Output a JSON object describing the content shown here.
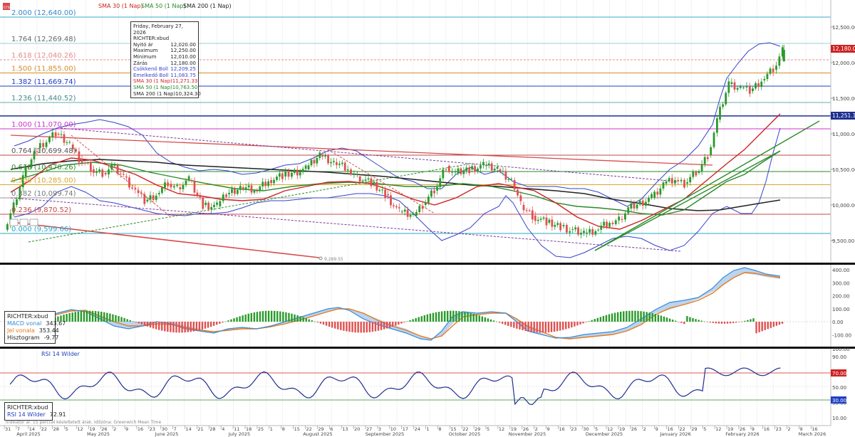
{
  "top_legend": {
    "symbol_badge": "crs",
    "sma30": "SMA 30 (1 Nap)",
    "sma50": "SMA 50 (1 Nap)",
    "sma200": "SMA 200 (1 Nap)"
  },
  "fib_labels": [
    {
      "text": "2.000 (12,640.00)",
      "color": "#3a86c8"
    },
    {
      "text": "1.764 (12,269.48)",
      "color": "#666666"
    },
    {
      "text": "1.618 (12,040.26)",
      "color": "#e88a8a"
    },
    {
      "text": "1.500 (11,855.00)",
      "color": "#d88a2a"
    },
    {
      "text": "1.382 (11,669.74)",
      "color": "#1f3fc0"
    },
    {
      "text": "1.236 (11,440.52)",
      "color": "#4a8a8a"
    },
    {
      "text": "1.000 (11,070.00)",
      "color": "#cc33cc"
    },
    {
      "text": "0.764 (10,699.48)",
      "color": "#555555"
    },
    {
      "text": "0.618 (10,470.26)",
      "color": "#2a8a2a"
    },
    {
      "text": "0.500 (10,285.00)",
      "color": "#d8a82a"
    },
    {
      "text": "0.382 (10,099.74)",
      "color": "#777777"
    },
    {
      "text": "0.236 (9,870.52)",
      "color": "#c84a4a"
    },
    {
      "text": "0.000 (9,599.66)",
      "color": "#2aa8c8"
    }
  ],
  "tooltip": {
    "date": "Friday, February 27, 2026",
    "ticker": "RICHTER:xbud",
    "rows": [
      {
        "label": "Nyitó ár",
        "value": "12,020.00",
        "color": "#222222"
      },
      {
        "label": "Maximum",
        "value": "12,250.00",
        "color": "#222222"
      },
      {
        "label": "Minimum",
        "value": "12,010.00",
        "color": "#222222"
      },
      {
        "label": "Zárás",
        "value": "12,180.00",
        "color": "#222222"
      },
      {
        "label": "Csökkenő Boll",
        "value": "12,209.25",
        "color": "#3344cc"
      },
      {
        "label": "Emelkedő Boll",
        "value": "11,083.75",
        "color": "#3344cc"
      },
      {
        "label": "SMA 30 (1 Nap)",
        "value": "11,271.33",
        "color": "#cc2222"
      },
      {
        "label": "SMA 50 (1 Nap)",
        "value": "10,763.50",
        "color": "#228822"
      },
      {
        "label": "SMA 200 (1 Nap)",
        "value": "10,324.30",
        "color": "#222222"
      }
    ]
  },
  "price_axis": {
    "ticks": [
      "12,500.00",
      "12,000.00",
      "11,500.00",
      "11,000.00",
      "10,500.00",
      "10,000.00",
      "9,500.00"
    ],
    "last_price_tag": "12,180.00",
    "hline_tag": "11,251.13",
    "low_marker": "9,289.55"
  },
  "macd_panel": {
    "ticker": "RICHTER:xbud",
    "macd_label": "MACD vonal",
    "macd_value": "343.67",
    "signal_label": "Jel vonala",
    "signal_value": "353.44",
    "hist_label": "Hisztogram",
    "hist_value": "-9.77",
    "ticks": [
      "400.00",
      "300.00",
      "200.00",
      "100.00",
      "0.00",
      "-100.00"
    ]
  },
  "rsi_panel": {
    "title": "RSI 14 Wilder",
    "ticker": "RICHTER:xbud",
    "rsi_label": "RSI 14 Wilder",
    "rsi_value": "72.91",
    "ticks": [
      "100.00",
      "90.00",
      "70.00",
      "50.00",
      "30.00",
      "10.00"
    ],
    "tag70": "70.00",
    "tag30": "30.00",
    "footer": "Indikátor ár. 15 perccel késleltetett árak. Időzóna: Greenwich Mean Time"
  },
  "time_axis": {
    "days": [
      "31",
      "7",
      "14",
      "22",
      "28",
      "5",
      "12",
      "19",
      "26",
      "2",
      "9",
      "16",
      "23",
      "30",
      "7",
      "14",
      "21",
      "28",
      "4",
      "11",
      "18",
      "25",
      "1",
      "8",
      "15",
      "22",
      "29",
      "6",
      "13",
      "20",
      "27",
      "3",
      "10",
      "17",
      "24",
      "1",
      "8",
      "15",
      "22",
      "29",
      "5",
      "12",
      "19",
      "26",
      "2",
      "9",
      "16",
      "23",
      "30",
      "5",
      "12",
      "19",
      "26",
      "2",
      "9",
      "16",
      "22",
      "29",
      "5",
      "12",
      "19",
      "26",
      "9",
      "16",
      "23",
      "2",
      "9",
      "16"
    ],
    "months": [
      "April 2025",
      "May 2025",
      "June 2025",
      "July 2025",
      "August 2025",
      "September 2025",
      "October 2025",
      "November 2025",
      "December 2025",
      "January 2026",
      "February 2026",
      "March 2026"
    ]
  },
  "chart_data": {
    "type": "candlestick",
    "ticker": "RICHTER:xbud",
    "timeframe": "1 Nap",
    "x_range": [
      "2025-03-31",
      "2026-03-16"
    ],
    "price_range": [
      9289.55,
      12640.0
    ],
    "last_bar": {
      "date": "2026-02-27",
      "open": 12020,
      "high": 12250,
      "low": 12010,
      "close": 12180
    },
    "fibonacci": [
      {
        "level": 2.0,
        "price": 12640.0
      },
      {
        "level": 1.764,
        "price": 12269.48
      },
      {
        "level": 1.618,
        "price": 12040.26
      },
      {
        "level": 1.5,
        "price": 11855.0
      },
      {
        "level": 1.382,
        "price": 11669.74
      },
      {
        "level": 1.236,
        "price": 11440.52
      },
      {
        "level": 1.0,
        "price": 11070.0
      },
      {
        "level": 0.764,
        "price": 10699.48
      },
      {
        "level": 0.618,
        "price": 10470.26
      },
      {
        "level": 0.5,
        "price": 10285.0
      },
      {
        "level": 0.382,
        "price": 10099.74
      },
      {
        "level": 0.236,
        "price": 9870.52
      },
      {
        "level": 0.0,
        "price": 9599.66
      }
    ],
    "horizontal_line": 11251.13,
    "series_close": [
      {
        "date": "2025-03-31",
        "close": 9650
      },
      {
        "date": "2025-04-04",
        "close": 10000
      },
      {
        "date": "2025-04-08",
        "close": 10400
      },
      {
        "date": "2025-04-14",
        "close": 10800
      },
      {
        "date": "2025-04-22",
        "close": 11000
      },
      {
        "date": "2025-04-28",
        "close": 10850
      },
      {
        "date": "2025-05-02",
        "close": 10650
      },
      {
        "date": "2025-05-07",
        "close": 10500
      },
      {
        "date": "2025-05-12",
        "close": 10450
      },
      {
        "date": "2025-05-16",
        "close": 10550
      },
      {
        "date": "2025-05-21",
        "close": 10400
      },
      {
        "date": "2025-05-26",
        "close": 10200
      },
      {
        "date": "2025-05-30",
        "close": 10050
      },
      {
        "date": "2025-06-04",
        "close": 10150
      },
      {
        "date": "2025-06-09",
        "close": 10300
      },
      {
        "date": "2025-06-13",
        "close": 10250
      },
      {
        "date": "2025-06-18",
        "close": 10350
      },
      {
        "date": "2025-06-24",
        "close": 10000
      },
      {
        "date": "2025-06-30",
        "close": 9980
      },
      {
        "date": "2025-07-04",
        "close": 10150
      },
      {
        "date": "2025-07-10",
        "close": 10250
      },
      {
        "date": "2025-07-16",
        "close": 10200
      },
      {
        "date": "2025-07-22",
        "close": 10350
      },
      {
        "date": "2025-07-28",
        "close": 10400
      },
      {
        "date": "2025-08-01",
        "close": 10450
      },
      {
        "date": "2025-08-07",
        "close": 10500
      },
      {
        "date": "2025-08-13",
        "close": 10700
      },
      {
        "date": "2025-08-19",
        "close": 10600
      },
      {
        "date": "2025-08-25",
        "close": 10500
      },
      {
        "date": "2025-08-29",
        "close": 10400
      },
      {
        "date": "2025-09-04",
        "close": 10300
      },
      {
        "date": "2025-09-10",
        "close": 10150
      },
      {
        "date": "2025-09-16",
        "close": 9900
      },
      {
        "date": "2025-09-22",
        "close": 9850
      },
      {
        "date": "2025-09-26",
        "close": 10000
      },
      {
        "date": "2025-10-01",
        "close": 10200
      },
      {
        "date": "2025-10-06",
        "close": 10550
      },
      {
        "date": "2025-10-10",
        "close": 10450
      },
      {
        "date": "2025-10-16",
        "close": 10500
      },
      {
        "date": "2025-10-22",
        "close": 10550
      },
      {
        "date": "2025-10-28",
        "close": 10500
      },
      {
        "date": "2025-11-03",
        "close": 10350
      },
      {
        "date": "2025-11-07",
        "close": 10000
      },
      {
        "date": "2025-11-12",
        "close": 9850
      },
      {
        "date": "2025-11-18",
        "close": 9750
      },
      {
        "date": "2025-11-24",
        "close": 9700
      },
      {
        "date": "2025-11-28",
        "close": 9650
      },
      {
        "date": "2025-12-04",
        "close": 9600
      },
      {
        "date": "2025-12-09",
        "close": 9650
      },
      {
        "date": "2025-12-15",
        "close": 9750
      },
      {
        "date": "2025-12-19",
        "close": 9800
      },
      {
        "date": "2025-12-23",
        "close": 9950
      },
      {
        "date": "2026-01-02",
        "close": 10100
      },
      {
        "date": "2026-01-07",
        "close": 10300
      },
      {
        "date": "2026-01-12",
        "close": 10350
      },
      {
        "date": "2026-01-16",
        "close": 10300
      },
      {
        "date": "2026-01-21",
        "close": 10450
      },
      {
        "date": "2026-01-26",
        "close": 10700
      },
      {
        "date": "2026-01-30",
        "close": 11200
      },
      {
        "date": "2026-02-04",
        "close": 11700
      },
      {
        "date": "2026-02-09",
        "close": 11650
      },
      {
        "date": "2026-02-13",
        "close": 11600
      },
      {
        "date": "2026-02-18",
        "close": 11750
      },
      {
        "date": "2026-02-23",
        "close": 11900
      },
      {
        "date": "2026-02-27",
        "close": 12180
      }
    ]
  }
}
